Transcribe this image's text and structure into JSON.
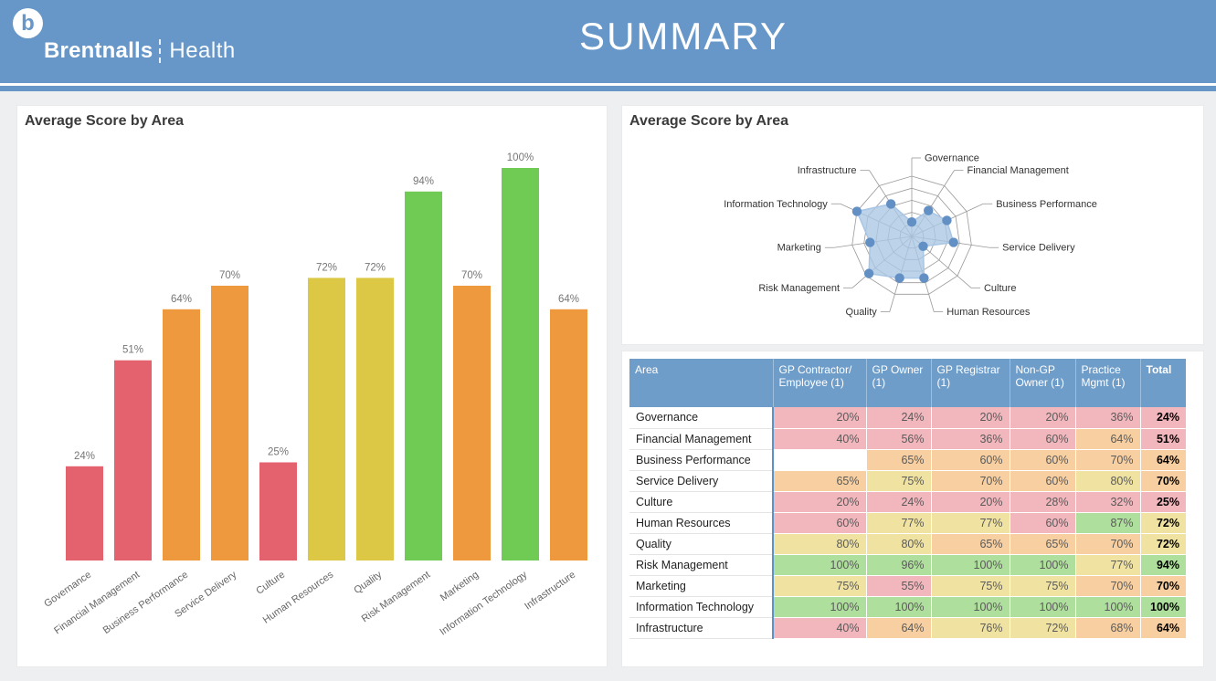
{
  "header": {
    "logo_initial": "b",
    "brand_bold": "Brentnalls",
    "brand_light": "Health",
    "page_title": "SUMMARY"
  },
  "colors": {
    "header_blue": "#6697c8",
    "bar_red": "#e4626e",
    "bar_orange": "#ef993f",
    "bar_yellow": "#ddc845",
    "bar_green": "#6fcb54",
    "table_header_blue": "#6e9dca",
    "cell_pink": "#f2b6bd",
    "cell_orange": "#f8cfa0",
    "cell_yellow": "#f0e3a2",
    "cell_green": "#afdf9c",
    "cell_white": "#ffffff",
    "radar_fill": "#a9c6e4",
    "radar_marker": "#6290c4"
  },
  "chart_data": [
    {
      "type": "bar",
      "title": "Average Score by Area",
      "categories": [
        "Governance",
        "Financial Management",
        "Business Performance",
        "Service Delivery",
        "Culture",
        "Human Resources",
        "Quality",
        "Risk Management",
        "Marketing",
        "Information Technology",
        "Infrastructure"
      ],
      "values": [
        24,
        51,
        64,
        70,
        25,
        72,
        72,
        94,
        70,
        100,
        64
      ],
      "value_labels": [
        "24%",
        "51%",
        "64%",
        "70%",
        "25%",
        "72%",
        "72%",
        "94%",
        "70%",
        "100%",
        "64%"
      ],
      "bar_color_names": [
        "red",
        "red",
        "orange",
        "orange",
        "red",
        "yellow",
        "yellow",
        "green",
        "orange",
        "green",
        "orange"
      ],
      "xlabel": "",
      "ylabel": "",
      "ylim": [
        0,
        100
      ],
      "grid": false,
      "data_labels": true,
      "x_label_rotation": -35
    },
    {
      "type": "radar",
      "title": "Average Score by Area",
      "categories": [
        "Governance",
        "Financial Management",
        "Business Performance",
        "Service Delivery",
        "Culture",
        "Human Resources",
        "Quality",
        "Risk Management",
        "Marketing",
        "Information Technology",
        "Infrastructure"
      ],
      "values": [
        24,
        51,
        64,
        70,
        25,
        72,
        72,
        94,
        70,
        100,
        64
      ],
      "max": 100,
      "rings": 5,
      "legend": false
    },
    {
      "type": "table",
      "columns": [
        "Area",
        "GP Contractor/ Employee (1)",
        "GP Owner (1)",
        "GP Registrar (1)",
        "Non-GP Owner (1)",
        "Practice Mgmt (1)",
        "Total"
      ],
      "rows": [
        {
          "area": "Governance",
          "cells": [
            {
              "v": "20%",
              "c": "pink"
            },
            {
              "v": "24%",
              "c": "pink"
            },
            {
              "v": "20%",
              "c": "pink"
            },
            {
              "v": "20%",
              "c": "pink"
            },
            {
              "v": "36%",
              "c": "pink"
            }
          ],
          "total": {
            "v": "24%",
            "c": "pink"
          }
        },
        {
          "area": "Financial Management",
          "cells": [
            {
              "v": "40%",
              "c": "pink"
            },
            {
              "v": "56%",
              "c": "pink"
            },
            {
              "v": "36%",
              "c": "pink"
            },
            {
              "v": "60%",
              "c": "pink"
            },
            {
              "v": "64%",
              "c": "orange"
            }
          ],
          "total": {
            "v": "51%",
            "c": "pink"
          }
        },
        {
          "area": "Business Performance",
          "cells": [
            {
              "v": "",
              "c": "white"
            },
            {
              "v": "65%",
              "c": "orange"
            },
            {
              "v": "60%",
              "c": "orange"
            },
            {
              "v": "60%",
              "c": "orange"
            },
            {
              "v": "70%",
              "c": "orange"
            }
          ],
          "total": {
            "v": "64%",
            "c": "orange"
          }
        },
        {
          "area": "Service Delivery",
          "cells": [
            {
              "v": "65%",
              "c": "orange"
            },
            {
              "v": "75%",
              "c": "yellow"
            },
            {
              "v": "70%",
              "c": "orange"
            },
            {
              "v": "60%",
              "c": "orange"
            },
            {
              "v": "80%",
              "c": "yellow"
            }
          ],
          "total": {
            "v": "70%",
            "c": "orange"
          }
        },
        {
          "area": "Culture",
          "cells": [
            {
              "v": "20%",
              "c": "pink"
            },
            {
              "v": "24%",
              "c": "pink"
            },
            {
              "v": "20%",
              "c": "pink"
            },
            {
              "v": "28%",
              "c": "pink"
            },
            {
              "v": "32%",
              "c": "pink"
            }
          ],
          "total": {
            "v": "25%",
            "c": "pink"
          }
        },
        {
          "area": "Human Resources",
          "cells": [
            {
              "v": "60%",
              "c": "pink"
            },
            {
              "v": "77%",
              "c": "yellow"
            },
            {
              "v": "77%",
              "c": "yellow"
            },
            {
              "v": "60%",
              "c": "pink"
            },
            {
              "v": "87%",
              "c": "green"
            }
          ],
          "total": {
            "v": "72%",
            "c": "yellow"
          }
        },
        {
          "area": "Quality",
          "cells": [
            {
              "v": "80%",
              "c": "yellow"
            },
            {
              "v": "80%",
              "c": "yellow"
            },
            {
              "v": "65%",
              "c": "orange"
            },
            {
              "v": "65%",
              "c": "orange"
            },
            {
              "v": "70%",
              "c": "orange"
            }
          ],
          "total": {
            "v": "72%",
            "c": "yellow"
          }
        },
        {
          "area": "Risk Management",
          "cells": [
            {
              "v": "100%",
              "c": "green"
            },
            {
              "v": "96%",
              "c": "green"
            },
            {
              "v": "100%",
              "c": "green"
            },
            {
              "v": "100%",
              "c": "green"
            },
            {
              "v": "77%",
              "c": "yellow"
            }
          ],
          "total": {
            "v": "94%",
            "c": "green"
          }
        },
        {
          "area": "Marketing",
          "cells": [
            {
              "v": "75%",
              "c": "yellow"
            },
            {
              "v": "55%",
              "c": "pink"
            },
            {
              "v": "75%",
              "c": "yellow"
            },
            {
              "v": "75%",
              "c": "yellow"
            },
            {
              "v": "70%",
              "c": "orange"
            }
          ],
          "total": {
            "v": "70%",
            "c": "orange"
          }
        },
        {
          "area": "Information Technology",
          "cells": [
            {
              "v": "100%",
              "c": "green"
            },
            {
              "v": "100%",
              "c": "green"
            },
            {
              "v": "100%",
              "c": "green"
            },
            {
              "v": "100%",
              "c": "green"
            },
            {
              "v": "100%",
              "c": "green"
            }
          ],
          "total": {
            "v": "100%",
            "c": "green"
          }
        },
        {
          "area": "Infrastructure",
          "cells": [
            {
              "v": "40%",
              "c": "pink"
            },
            {
              "v": "64%",
              "c": "orange"
            },
            {
              "v": "76%",
              "c": "yellow"
            },
            {
              "v": "72%",
              "c": "yellow"
            },
            {
              "v": "68%",
              "c": "orange"
            }
          ],
          "total": {
            "v": "64%",
            "c": "orange"
          }
        }
      ]
    }
  ]
}
